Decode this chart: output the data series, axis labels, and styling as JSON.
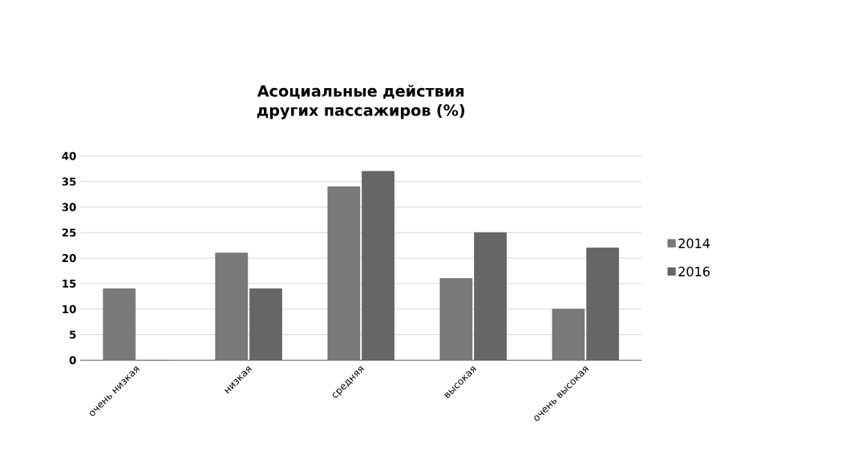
{
  "chart_data": {
    "type": "bar",
    "title": "Асоциальные действия других пассажиров (%)",
    "categories": [
      "очень низкая",
      "низкая",
      "средняя",
      "высокая",
      "очень высокая"
    ],
    "series": [
      {
        "name": "2014",
        "color": "#7a7a7a",
        "values": [
          14,
          21,
          34,
          16,
          10
        ]
      },
      {
        "name": "2016",
        "color": "#666666",
        "values": [
          0,
          14,
          37,
          25,
          22
        ]
      }
    ],
    "ylim": [
      0,
      40
    ],
    "yticks": [
      0,
      5,
      10,
      15,
      20,
      25,
      30,
      35,
      40
    ],
    "grid": "y",
    "legend": "right"
  }
}
